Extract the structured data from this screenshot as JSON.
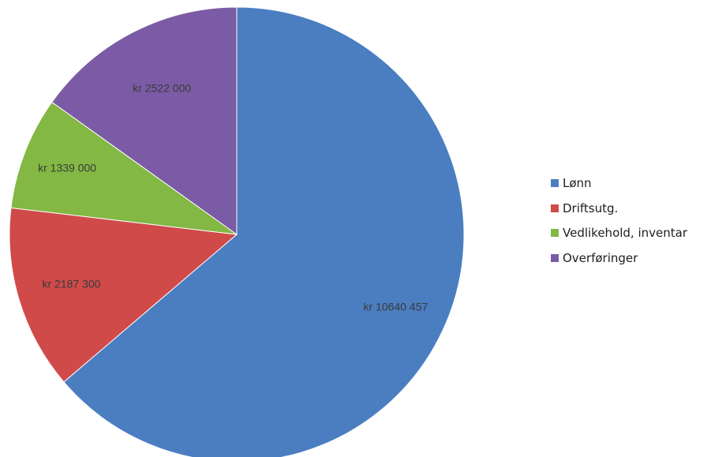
{
  "chart_data": {
    "type": "pie",
    "title": "",
    "categories": [
      "Lønn",
      "Driftsutg.",
      "Vedlikehold, inventar",
      "Overføringer"
    ],
    "values": [
      10640457,
      2187300,
      1339000,
      2522000
    ],
    "data_labels": [
      "kr 10640 457",
      "kr 2187 300",
      "kr 1339 000",
      "kr 2522 000"
    ],
    "colors": [
      "#4a7ec1",
      "#d04a4a",
      "#82b843",
      "#7b5ba5"
    ],
    "start_angle_deg": 0,
    "direction": "clockwise",
    "legend_position": "right"
  },
  "legend": {
    "items": [
      {
        "label": "Lønn",
        "color": "#4a7ec1"
      },
      {
        "label": "Driftsutg.",
        "color": "#d04a4a"
      },
      {
        "label": "Vedlikehold, inventar",
        "color": "#82b843"
      },
      {
        "label": "Overføringer",
        "color": "#7b5ba5"
      }
    ]
  }
}
